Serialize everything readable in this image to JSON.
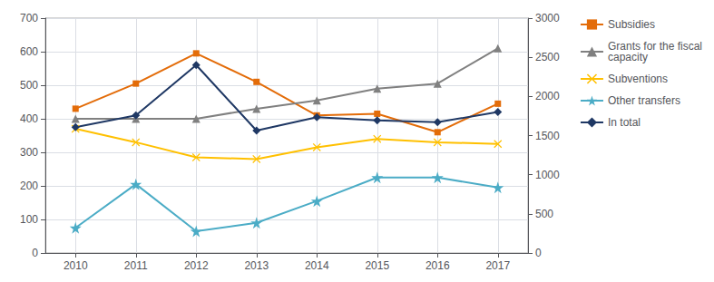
{
  "chart_data": {
    "type": "line",
    "x": [
      2010,
      2011,
      2012,
      2013,
      2014,
      2015,
      2016,
      2017
    ],
    "xlim": [
      2009.5,
      2017.5
    ],
    "xticks": [
      2010,
      2011,
      2012,
      2013,
      2014,
      2015,
      2016,
      2017
    ],
    "ylim": [
      0,
      700
    ],
    "yticks": [
      0,
      100,
      200,
      300,
      400,
      500,
      600,
      700
    ],
    "y2lim": [
      0,
      3000
    ],
    "y2ticks": [
      0,
      500,
      1000,
      1500,
      2000,
      2500,
      3000
    ],
    "grid": true,
    "legend": "right",
    "series": [
      {
        "name": "Subsidies",
        "color": "#E36C09",
        "marker": "square",
        "values": [
          430,
          505,
          595,
          510,
          410,
          415,
          360,
          445
        ]
      },
      {
        "name": "Grants for the fiscal\ncapacity",
        "color": "#808080",
        "marker": "triangle",
        "values": [
          400,
          400,
          400,
          430,
          455,
          490,
          505,
          610
        ]
      },
      {
        "name": "Subventions",
        "color": "#FFC000",
        "marker": "x",
        "values": [
          370,
          330,
          285,
          280,
          315,
          340,
          330,
          325
        ]
      },
      {
        "name": "Other transfers",
        "color": "#4BACC6",
        "marker": "star",
        "values": [
          75,
          205,
          65,
          90,
          155,
          225,
          225,
          195
        ]
      },
      {
        "name": "In total",
        "color": "#1F3864",
        "marker": "diamond",
        "values": [
          375,
          410,
          560,
          365,
          405,
          395,
          390,
          420
        ]
      }
    ]
  }
}
